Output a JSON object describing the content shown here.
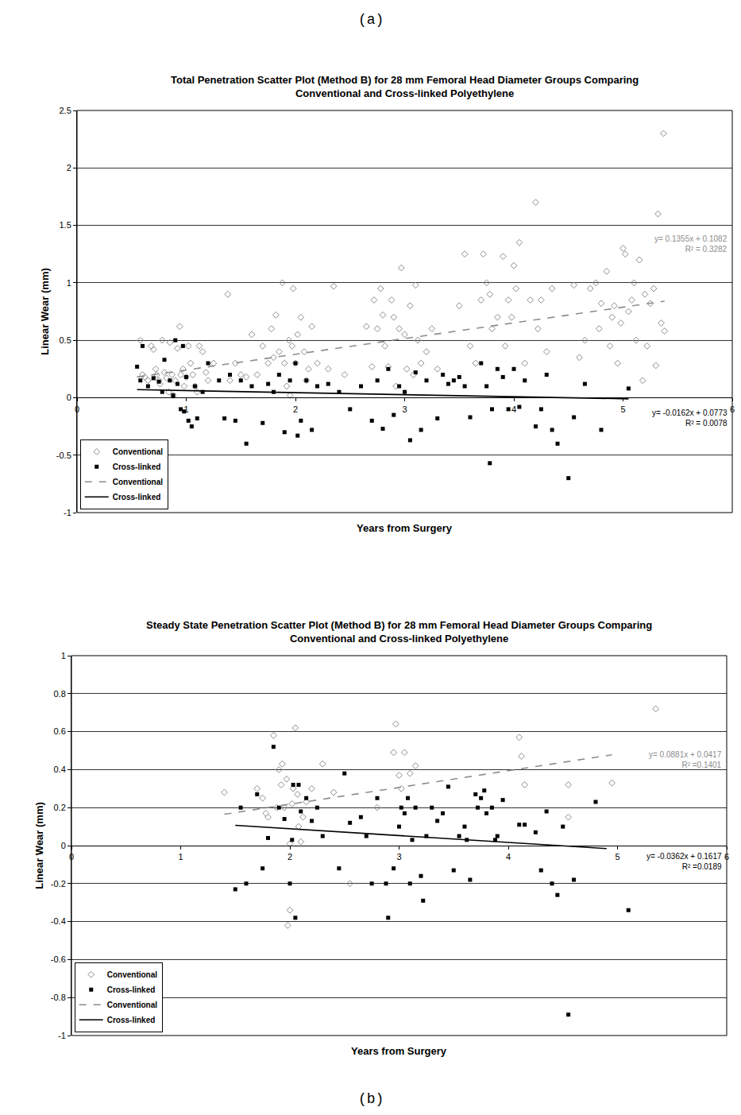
{
  "chart_data": [
    {
      "type": "scatter",
      "caption": "(a)",
      "title": "Total Penetration Scatter Plot (Method B) for 28 mm Femoral Head Diameter Groups Comparing\nConventional and Cross-linked Polyethylene",
      "x_label": "Years from Surgery",
      "y_label": "Linear Wear (mm)",
      "xlim": [
        0,
        6
      ],
      "xticks": [
        0,
        1,
        2,
        3,
        4,
        5,
        6
      ],
      "ylim": [
        -1,
        2.5
      ],
      "yticks": [
        -1,
        -0.5,
        0,
        0.5,
        1,
        1.5,
        2,
        2.5
      ],
      "grid": true,
      "legend": "lower left",
      "series": [
        {
          "name": "Conventional",
          "type": "scatter",
          "marker": "diamond-open",
          "color": "#8c8c8c",
          "x": [
            0.58,
            0.6,
            0.62,
            0.65,
            0.68,
            0.7,
            0.72,
            0.73,
            0.75,
            0.76,
            0.78,
            0.8,
            0.82,
            0.84,
            0.85,
            0.87,
            0.88,
            0.9,
            0.92,
            0.94,
            0.95,
            0.97,
            0.98,
            1.0,
            1.02,
            1.04,
            1.06,
            1.08,
            1.1,
            1.12,
            1.15,
            1.18,
            1.2,
            1.25,
            1.38,
            1.4,
            1.45,
            1.5,
            1.55,
            1.6,
            1.65,
            1.7,
            1.75,
            1.78,
            1.8,
            1.82,
            1.85,
            1.88,
            1.9,
            1.92,
            1.94,
            1.95,
            1.97,
            1.98,
            2.0,
            2.02,
            2.05,
            2.08,
            2.1,
            2.12,
            2.15,
            2.2,
            2.3,
            2.35,
            2.45,
            2.65,
            2.7,
            2.72,
            2.75,
            2.78,
            2.8,
            2.82,
            2.85,
            2.88,
            2.9,
            2.92,
            2.95,
            2.97,
            3.0,
            3.02,
            3.05,
            3.08,
            3.1,
            3.12,
            3.15,
            3.2,
            3.25,
            3.3,
            3.5,
            3.55,
            3.6,
            3.65,
            3.7,
            3.72,
            3.75,
            3.78,
            3.8,
            3.85,
            3.9,
            3.92,
            3.95,
            3.98,
            4.0,
            4.02,
            4.05,
            4.1,
            4.15,
            4.2,
            4.22,
            4.25,
            4.3,
            4.35,
            4.55,
            4.6,
            4.65,
            4.7,
            4.75,
            4.78,
            4.8,
            4.85,
            4.88,
            4.9,
            4.92,
            4.95,
            4.98,
            5.0,
            5.02,
            5.05,
            5.08,
            5.1,
            5.12,
            5.15,
            5.18,
            5.2,
            5.22,
            5.25,
            5.28,
            5.3,
            5.32,
            5.35,
            5.37,
            5.38
          ],
          "values": [
            0.5,
            0.2,
            0.18,
            0.15,
            0.45,
            0.42,
            0.25,
            0.2,
            0.15,
            0.12,
            0.5,
            0.22,
            0.17,
            0.05,
            0.48,
            0.2,
            0.02,
            0.15,
            0.43,
            0.62,
            0.2,
            0.25,
            0.1,
            0.18,
            0.45,
            0.3,
            0.2,
            0.1,
            0.05,
            0.45,
            0.4,
            0.22,
            0.15,
            0.3,
            0.9,
            0.15,
            0.3,
            0.2,
            0.18,
            0.55,
            0.2,
            0.45,
            0.3,
            0.6,
            0.35,
            0.72,
            0.4,
            1.0,
            0.3,
            0.1,
            0.5,
            0.02,
            0.45,
            0.95,
            0.3,
            0.55,
            0.7,
            0.4,
            0.15,
            0.25,
            0.62,
            0.3,
            0.25,
            0.97,
            0.2,
            0.62,
            0.27,
            0.85,
            0.6,
            0.95,
            0.72,
            0.45,
            0.27,
            0.85,
            0.7,
            0.1,
            0.6,
            1.13,
            0.55,
            0.25,
            0.8,
            0.2,
            0.98,
            0.5,
            0.3,
            0.4,
            0.6,
            0.25,
            0.8,
            1.25,
            0.45,
            0.3,
            0.85,
            1.25,
            1.0,
            0.9,
            0.6,
            0.7,
            1.23,
            0.45,
            0.85,
            0.7,
            1.15,
            0.95,
            1.35,
            0.3,
            0.85,
            1.7,
            0.6,
            0.85,
            0.4,
            0.95,
            0.98,
            0.35,
            0.5,
            0.95,
            1.0,
            0.6,
            0.82,
            1.1,
            0.45,
            0.7,
            0.8,
            0.3,
            0.65,
            1.3,
            1.25,
            0.75,
            0.85,
            1.0,
            0.5,
            1.2,
            0.15,
            0.9,
            0.45,
            0.82,
            0.95,
            0.28,
            1.6,
            0.65,
            2.3,
            0.58
          ]
        },
        {
          "name": "Cross-linked",
          "type": "scatter",
          "marker": "square",
          "color": "#000000",
          "x": [
            0.55,
            0.58,
            0.6,
            0.65,
            0.7,
            0.75,
            0.78,
            0.8,
            0.85,
            0.88,
            0.9,
            0.92,
            0.95,
            0.97,
            0.98,
            1.0,
            1.02,
            1.05,
            1.08,
            1.1,
            1.15,
            1.2,
            1.3,
            1.35,
            1.4,
            1.45,
            1.5,
            1.55,
            1.6,
            1.7,
            1.75,
            1.8,
            1.85,
            1.9,
            1.95,
            2.0,
            2.02,
            2.05,
            2.1,
            2.15,
            2.2,
            2.3,
            2.4,
            2.5,
            2.6,
            2.7,
            2.75,
            2.8,
            2.85,
            2.9,
            2.95,
            3.0,
            3.05,
            3.1,
            3.15,
            3.2,
            3.3,
            3.35,
            3.4,
            3.45,
            3.5,
            3.55,
            3.6,
            3.7,
            3.75,
            3.78,
            3.8,
            3.85,
            3.9,
            3.95,
            4.0,
            4.05,
            4.1,
            4.2,
            4.25,
            4.3,
            4.35,
            4.4,
            4.5,
            4.55,
            4.65,
            4.8,
            5.05
          ],
          "values": [
            0.27,
            0.15,
            0.45,
            0.1,
            0.17,
            0.14,
            0.05,
            0.33,
            0.15,
            0.02,
            0.5,
            0.12,
            -0.1,
            0.45,
            -0.12,
            0.18,
            -0.2,
            -0.25,
            0.1,
            -0.18,
            0.05,
            0.3,
            0.15,
            -0.18,
            0.2,
            -0.2,
            0.15,
            -0.4,
            0.1,
            -0.22,
            0.12,
            0.05,
            0.2,
            -0.3,
            0.15,
            0.3,
            -0.33,
            -0.2,
            0.15,
            -0.28,
            0.1,
            0.12,
            0.05,
            -0.1,
            0.1,
            -0.2,
            0.15,
            -0.27,
            0.25,
            -0.15,
            0.1,
            0.05,
            -0.37,
            0.22,
            -0.28,
            0.15,
            -0.18,
            0.2,
            0.12,
            0.15,
            0.18,
            0.1,
            -0.17,
            0.3,
            0.1,
            -0.57,
            -0.1,
            0.25,
            0.18,
            -0.1,
            0.25,
            -0.08,
            0.15,
            -0.25,
            -0.1,
            0.2,
            -0.28,
            -0.4,
            -0.7,
            -0.17,
            0.12,
            -0.28,
            0.08
          ]
        },
        {
          "name": "Conventional",
          "type": "line",
          "line_style": "dash",
          "color": "#8c8c8c",
          "x": [
            0.55,
            5.38
          ],
          "values": [
            0.18,
            0.84
          ],
          "equation": "y= 0.1355x + 0.1082",
          "r_squared": "R² = 0.3282"
        },
        {
          "name": "Cross-linked",
          "type": "line",
          "line_style": "solid",
          "color": "#000000",
          "x": [
            0.55,
            5.05
          ],
          "values": [
            0.07,
            -0.01
          ],
          "equation": "y= -0.0162x + 0.0773",
          "r_squared": "R² = 0.0078"
        }
      ]
    },
    {
      "type": "scatter",
      "caption": "(b)",
      "title": "Steady State Penetration Scatter Plot (Method B) for 28 mm Femoral Head Diameter Groups Comparing\nConventional and Cross-linked Polyethylene",
      "x_label": "Years from Surgery",
      "y_label": "Linear Wear (mm)",
      "xlim": [
        0,
        6
      ],
      "xticks": [
        0,
        1,
        2,
        3,
        4,
        5,
        6
      ],
      "ylim": [
        -1,
        1
      ],
      "yticks": [
        -1,
        -0.8,
        -0.6,
        -0.4,
        -0.2,
        0,
        0.2,
        0.4,
        0.6,
        0.8,
        1
      ],
      "grid": true,
      "legend": "lower left",
      "series": [
        {
          "name": "Conventional",
          "type": "scatter",
          "marker": "diamond-open",
          "color": "#8c8c8c",
          "x": [
            1.4,
            1.7,
            1.75,
            1.78,
            1.8,
            1.85,
            1.88,
            1.9,
            1.92,
            1.93,
            1.95,
            1.97,
            1.98,
            2.0,
            2.0,
            2.02,
            2.03,
            2.05,
            2.07,
            2.08,
            2.1,
            2.12,
            2.15,
            2.2,
            2.3,
            2.4,
            2.55,
            2.8,
            2.95,
            2.97,
            3.0,
            3.02,
            3.05,
            3.1,
            3.15,
            4.1,
            4.12,
            4.15,
            4.55,
            4.55,
            4.95,
            5.35
          ],
          "values": [
            0.28,
            0.3,
            0.25,
            0.17,
            0.15,
            0.58,
            0.2,
            0.4,
            0.32,
            0.43,
            0.2,
            0.35,
            -0.42,
            -0.34,
            0.01,
            0.22,
            0.3,
            0.62,
            0.27,
            0.1,
            0.02,
            0.15,
            0.23,
            0.3,
            0.43,
            0.28,
            -0.2,
            0.2,
            0.49,
            0.64,
            0.37,
            0.3,
            0.49,
            0.38,
            0.42,
            0.57,
            0.47,
            0.32,
            0.32,
            0.15,
            0.33,
            0.72
          ]
        },
        {
          "name": "Cross-linked",
          "type": "scatter",
          "marker": "square",
          "color": "#000000",
          "x": [
            1.5,
            1.55,
            1.6,
            1.7,
            1.75,
            1.8,
            1.85,
            1.9,
            1.95,
            2.0,
            2.02,
            2.03,
            2.05,
            2.08,
            2.1,
            2.15,
            2.2,
            2.25,
            2.3,
            2.45,
            2.5,
            2.55,
            2.65,
            2.7,
            2.75,
            2.8,
            2.88,
            2.9,
            2.95,
            3.0,
            3.02,
            3.05,
            3.08,
            3.1,
            3.12,
            3.15,
            3.2,
            3.22,
            3.25,
            3.3,
            3.35,
            3.4,
            3.45,
            3.5,
            3.55,
            3.6,
            3.62,
            3.65,
            3.7,
            3.72,
            3.75,
            3.78,
            3.8,
            3.85,
            3.88,
            3.9,
            3.95,
            4.1,
            4.15,
            4.25,
            4.3,
            4.35,
            4.4,
            4.45,
            4.5,
            4.55,
            4.6,
            4.8,
            5.1
          ],
          "values": [
            -0.23,
            0.2,
            -0.2,
            0.27,
            -0.12,
            0.04,
            0.52,
            0.2,
            0.14,
            -0.2,
            0.03,
            0.32,
            -0.38,
            0.32,
            0.18,
            0.25,
            0.13,
            0.2,
            0.05,
            -0.12,
            0.38,
            0.12,
            0.15,
            0.05,
            -0.2,
            0.25,
            -0.2,
            -0.38,
            -0.12,
            0.1,
            0.2,
            0.17,
            0.25,
            -0.2,
            0.03,
            0.2,
            -0.16,
            -0.29,
            0.05,
            0.2,
            0.13,
            0.17,
            0.31,
            -0.13,
            0.05,
            0.1,
            0.03,
            -0.18,
            0.27,
            0.2,
            0.25,
            0.29,
            0.17,
            0.2,
            0.03,
            0.05,
            0.24,
            0.11,
            0.11,
            0.07,
            -0.13,
            0.18,
            -0.2,
            -0.26,
            0.1,
            -0.89,
            -0.18,
            0.23,
            -0.34
          ]
        },
        {
          "name": "Conventional",
          "type": "line",
          "line_style": "dash",
          "color": "#8c8c8c",
          "x": [
            1.4,
            4.95
          ],
          "values": [
            0.165,
            0.478
          ],
          "equation": "y= 0.0881x + 0.0417",
          "r_squared": "R² =0.1401"
        },
        {
          "name": "Cross-linked",
          "type": "line",
          "line_style": "solid",
          "color": "#000000",
          "x": [
            1.5,
            4.9
          ],
          "values": [
            0.107,
            -0.016
          ],
          "equation": "y= -0.0362x + 0.1617",
          "r_squared": "R² =0.0189"
        }
      ]
    }
  ]
}
